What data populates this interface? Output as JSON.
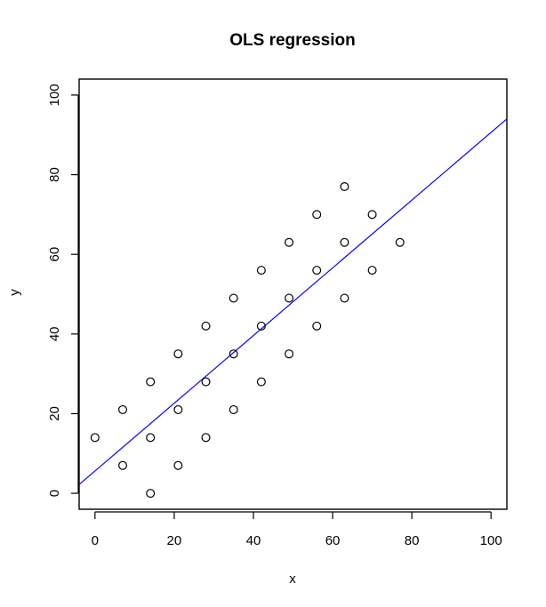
{
  "chart_data": {
    "type": "scatter",
    "title": "OLS regression",
    "xlabel": "x",
    "ylabel": "y",
    "xlim": [
      -4,
      104
    ],
    "ylim": [
      -4,
      104
    ],
    "xticks": [
      0,
      20,
      40,
      60,
      80,
      100
    ],
    "yticks": [
      0,
      20,
      40,
      60,
      80,
      100
    ],
    "grid": false,
    "points": [
      {
        "x": 0,
        "y": 14
      },
      {
        "x": 7,
        "y": 7
      },
      {
        "x": 7,
        "y": 21
      },
      {
        "x": 14,
        "y": 0
      },
      {
        "x": 14,
        "y": 14
      },
      {
        "x": 14,
        "y": 28
      },
      {
        "x": 21,
        "y": 7
      },
      {
        "x": 21,
        "y": 21
      },
      {
        "x": 21,
        "y": 35
      },
      {
        "x": 28,
        "y": 14
      },
      {
        "x": 28,
        "y": 28
      },
      {
        "x": 28,
        "y": 42
      },
      {
        "x": 35,
        "y": 21
      },
      {
        "x": 35,
        "y": 35
      },
      {
        "x": 35,
        "y": 49
      },
      {
        "x": 42,
        "y": 28
      },
      {
        "x": 42,
        "y": 42
      },
      {
        "x": 42,
        "y": 56
      },
      {
        "x": 49,
        "y": 35
      },
      {
        "x": 49,
        "y": 49
      },
      {
        "x": 49,
        "y": 63
      },
      {
        "x": 56,
        "y": 42
      },
      {
        "x": 56,
        "y": 56
      },
      {
        "x": 56,
        "y": 70
      },
      {
        "x": 63,
        "y": 49
      },
      {
        "x": 63,
        "y": 63
      },
      {
        "x": 63,
        "y": 77
      },
      {
        "x": 70,
        "y": 56
      },
      {
        "x": 70,
        "y": 70
      },
      {
        "x": 77,
        "y": 63
      }
    ],
    "regression_line": {
      "intercept": 5.6,
      "slope": 0.85,
      "color": "#0000ff"
    },
    "point_color": "#000000"
  }
}
